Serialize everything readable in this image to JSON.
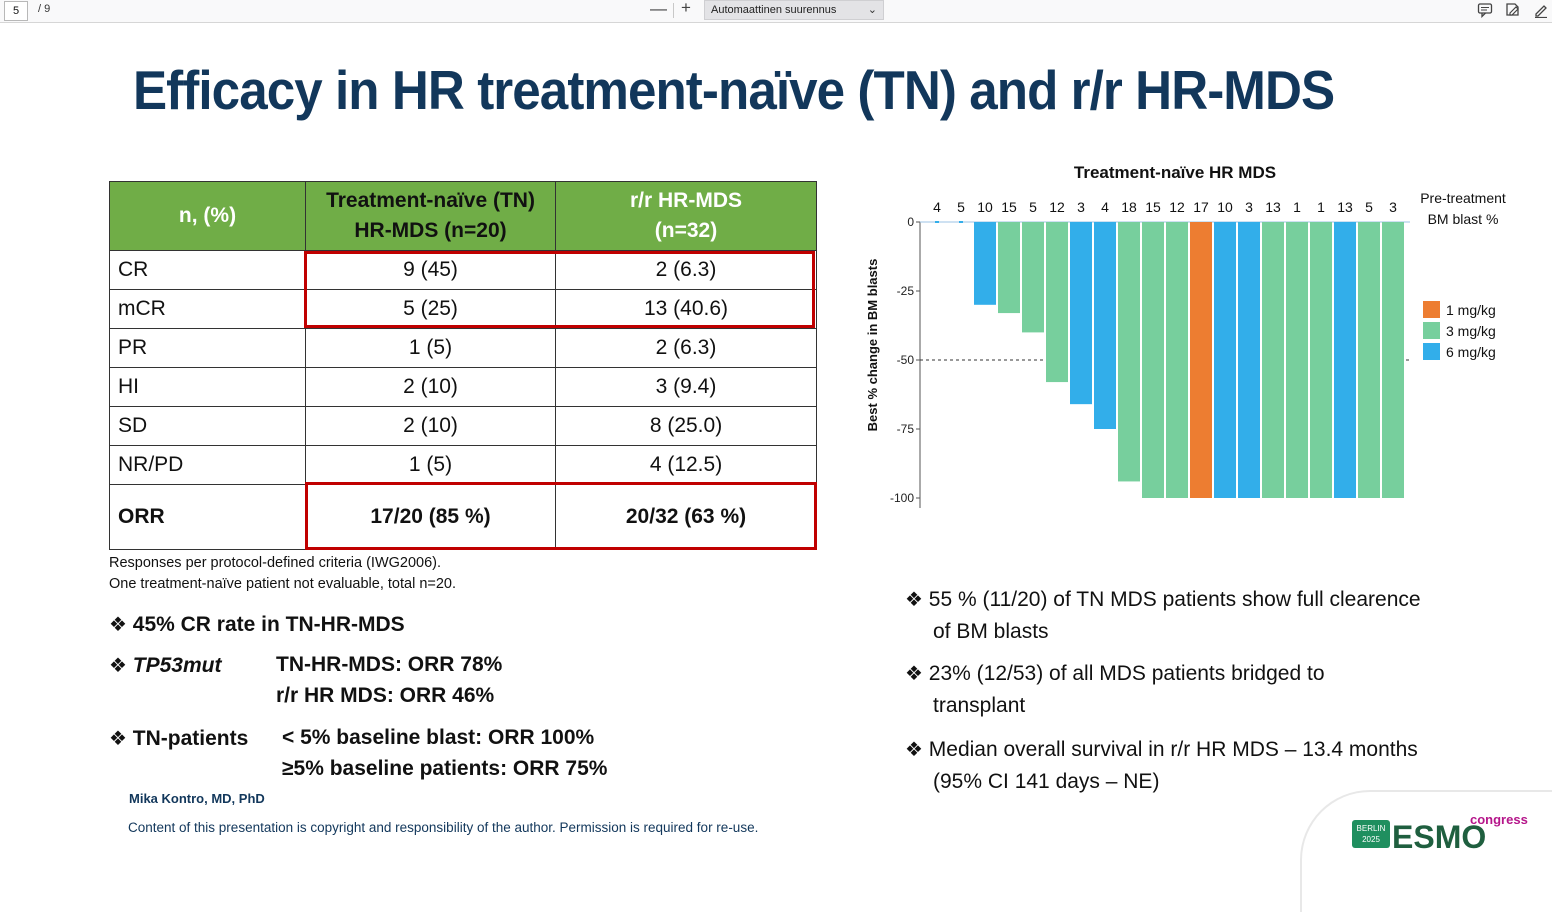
{
  "viewer": {
    "page_number": "5",
    "page_total": "/ 9",
    "zoom_out": "—",
    "zoom_in": "+",
    "zoom_label": "Automaattinen suurennus",
    "icons": [
      "comment-icon",
      "draw-icon",
      "edit-icon"
    ]
  },
  "slide": {
    "title": "Efficacy in HR treatment-naïve (TN) and r/r HR-MDS",
    "table": {
      "headers": [
        "n, (%)",
        "Treatment-naïve (TN)",
        "HR-MDS (n=20)",
        "r/r HR-MDS",
        "(n=32)"
      ],
      "rows": [
        {
          "label": "CR",
          "tn": "9 (45)",
          "rr": "2 (6.3)"
        },
        {
          "label": "mCR",
          "tn": "5 (25)",
          "rr": "13 (40.6)"
        },
        {
          "label": "PR",
          "tn": "1 (5)",
          "rr": "2 (6.3)"
        },
        {
          "label": "HI",
          "tn": "2 (10)",
          "rr": "3 (9.4)"
        },
        {
          "label": "SD",
          "tn": "2 (10)",
          "rr": "8 (25.0)"
        },
        {
          "label": "NR/PD",
          "tn": "1 (5)",
          "rr": "4 (12.5)"
        },
        {
          "label": "ORR",
          "tn": "17/20 (85 %)",
          "rr": "20/32 (63 %)"
        }
      ]
    },
    "notes": [
      "Responses per protocol-defined criteria (IWG2006).",
      "One treatment-naïve patient not evaluable, total n=20."
    ],
    "left_bullets": {
      "b1": "45% CR rate in TN-HR-MDS",
      "b2_label": "TP53mut",
      "b2_line1": "TN-HR-MDS: ORR 78%",
      "b2_line2": "r/r HR MDS: ORR 46%",
      "b3_label": "TN-patients",
      "b3_line1": "< 5% baseline blast: ORR 100%",
      "b3_line2": "≥5% baseline patients: ORR 75%"
    },
    "right_bullets": [
      {
        "line1": "55 % (11/20) of TN MDS patients show full clearence",
        "line2": "of BM blasts"
      },
      {
        "line1": "23% (12/53) of all MDS patients bridged to",
        "line2": "transplant"
      },
      {
        "line1": "Median overall survival in r/r HR MDS – 13.4 months",
        "line2": "(95% CI 141 days – NE)"
      }
    ],
    "bullet_symbol": "❖",
    "author": "Mika Kontro, MD, PhD",
    "copyright": "Content of this presentation is copyright and responsibility of the author. Permission is required for re-use.",
    "logo": {
      "city": "BERLIN",
      "year": "2025",
      "brand": "ESMO",
      "suffix": "congress"
    }
  },
  "chart_data": {
    "type": "bar",
    "title": "Treatment-naïve HR MDS",
    "ylabel": "Best % change in BM blasts",
    "ylim": [
      -100,
      0
    ],
    "yticks": [
      0,
      -25,
      -50,
      -75,
      -100
    ],
    "reference_line": -50,
    "top_annotation_label_line1": "Pre-treatment",
    "top_annotation_label_line2": "BM blast %",
    "categories": [
      "4",
      "5",
      "10",
      "15",
      "5",
      "12",
      "3",
      "4",
      "18",
      "15",
      "12",
      "17",
      "10",
      "3",
      "13",
      "1",
      "1",
      "13",
      "5",
      "3"
    ],
    "values": [
      0,
      0,
      -30,
      -33,
      -40,
      -58,
      -66,
      -75,
      -94,
      -100,
      -100,
      -100,
      -100,
      -100,
      -100,
      -100,
      -100,
      -100,
      -100,
      -100
    ],
    "dose": [
      "6",
      "6",
      "6",
      "3",
      "3",
      "3",
      "6",
      "6",
      "3",
      "3",
      "3",
      "1",
      "6",
      "6",
      "3",
      "3",
      "3",
      "6",
      "3",
      "3"
    ],
    "legend": [
      {
        "key": "1",
        "label": "1 mg/kg",
        "color": "#ed7d31"
      },
      {
        "key": "3",
        "label": "3 mg/kg",
        "color": "#77cf9d"
      },
      {
        "key": "6",
        "label": "6 mg/kg",
        "color": "#32aeea"
      }
    ],
    "legend_position": "right"
  }
}
